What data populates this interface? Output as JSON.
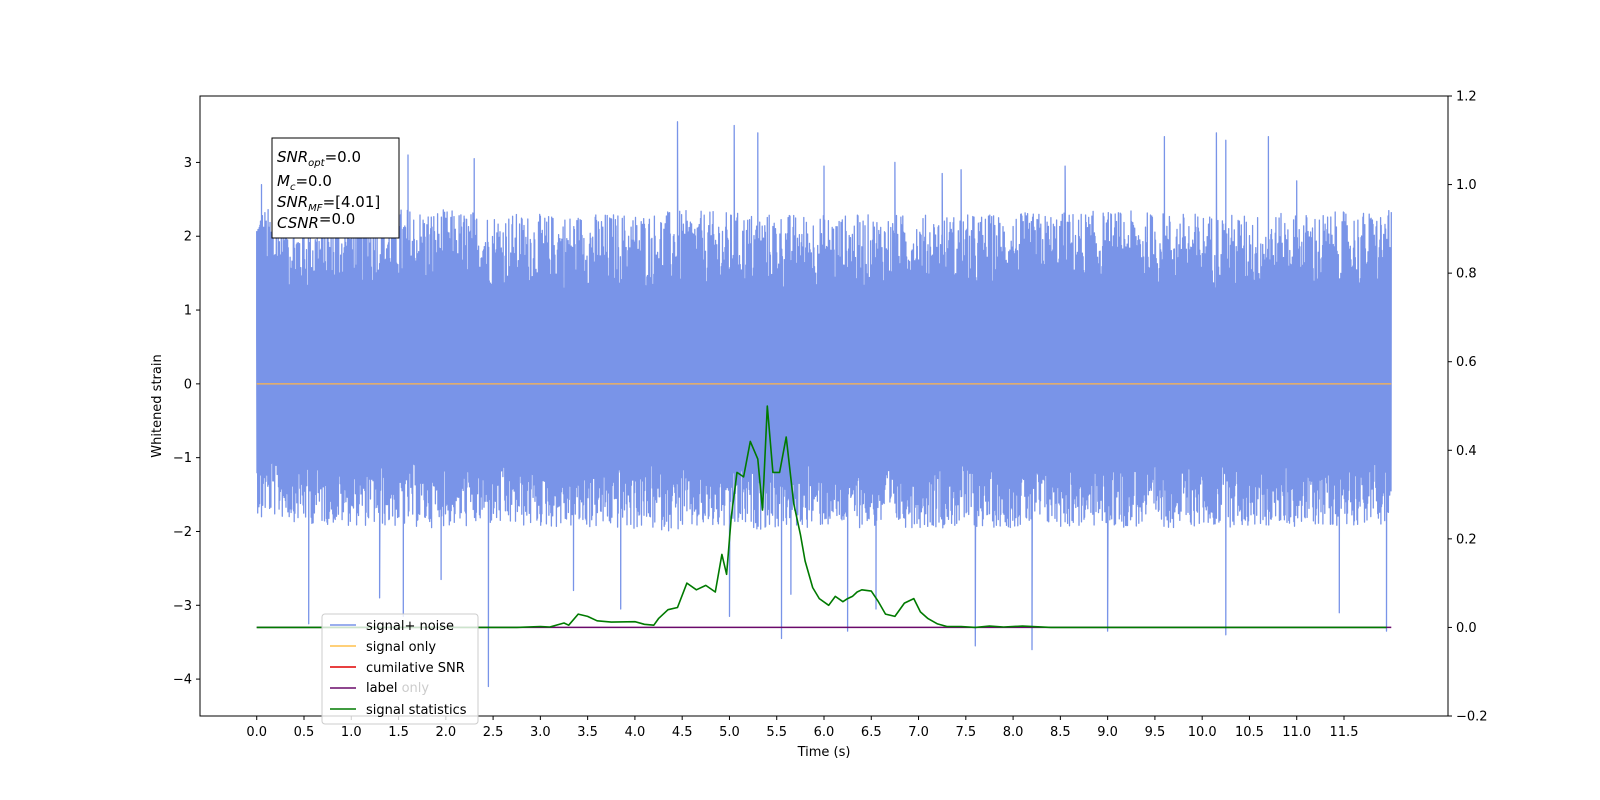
{
  "chart_data": {
    "type": "line",
    "xlabel": "Time (s)",
    "ylabel": "Whitened strain",
    "xlim": [
      -0.6,
      12.6
    ],
    "ylim": [
      -4.5,
      3.9
    ],
    "ylim_right": [
      -0.2,
      1.2
    ],
    "x_ticks": [
      "0.0",
      "0.5",
      "1.0",
      "1.5",
      "2.0",
      "2.5",
      "3.0",
      "3.5",
      "4.0",
      "4.5",
      "5.0",
      "5.5",
      "6.0",
      "6.5",
      "7.0",
      "7.5",
      "8.0",
      "8.5",
      "9.0",
      "9.5",
      "10.0",
      "10.5",
      "11.0",
      "11.5"
    ],
    "y_ticks": [
      "3",
      "2",
      "1",
      "0",
      "−1",
      "−2",
      "−3",
      "−4"
    ],
    "y_ticks_right": [
      "1.2",
      "1.0",
      "0.8",
      "0.6",
      "0.4",
      "0.2",
      "0.0",
      "−0.2"
    ],
    "info_box": [
      {
        "main": "SNR",
        "sub": "opt",
        "value": "=0.0"
      },
      {
        "main": "M",
        "sub": "c",
        "value": "=0.0"
      },
      {
        "main": "SNR",
        "sub": "MF",
        "value": "=[4.01]"
      },
      {
        "main": "CSNR",
        "sub": "",
        "value": "=0.0"
      }
    ],
    "legend": [
      {
        "label": "signal+ noise",
        "color": "#7994e8"
      },
      {
        "label": "signal only",
        "color": "#ffc04d"
      },
      {
        "label": "cumilative SNR",
        "color": "#e00000"
      },
      {
        "label": "label",
        "color": "#6a0a6a"
      },
      {
        "label": "signal statistics",
        "color": "#007a00"
      }
    ],
    "legend_hidden_text": [
      "label only"
    ],
    "series": [
      {
        "name": "signal+ noise",
        "axis": "left",
        "x_range": [
          0.0,
          12.0
        ],
        "envelope_upper": [
          [
            0.0,
            2.45
          ],
          [
            0.5,
            2.2
          ],
          [
            1.5,
            2.4
          ],
          [
            3.0,
            2.3
          ],
          [
            4.5,
            2.35
          ],
          [
            6.0,
            2.3
          ],
          [
            7.5,
            2.3
          ],
          [
            9.0,
            2.35
          ],
          [
            10.5,
            2.3
          ],
          [
            12.0,
            2.35
          ]
        ],
        "envelope_lower": [
          [
            0.0,
            -1.75
          ],
          [
            0.5,
            -1.9
          ],
          [
            1.5,
            -1.95
          ],
          [
            3.0,
            -1.95
          ],
          [
            4.5,
            -2.0
          ],
          [
            6.0,
            -1.95
          ],
          [
            7.5,
            -1.95
          ],
          [
            9.0,
            -1.95
          ],
          [
            10.5,
            -1.95
          ],
          [
            12.0,
            -1.9
          ]
        ],
        "peaks_high": [
          [
            0.0,
            0.65
          ],
          [
            0.05,
            2.7
          ],
          [
            1.6,
            3.1
          ],
          [
            2.3,
            3.05
          ],
          [
            4.45,
            3.55
          ],
          [
            5.05,
            3.5
          ],
          [
            5.3,
            3.4
          ],
          [
            6.0,
            2.95
          ],
          [
            6.75,
            3.0
          ],
          [
            7.25,
            2.85
          ],
          [
            7.45,
            2.9
          ],
          [
            8.55,
            2.95
          ],
          [
            9.6,
            3.35
          ],
          [
            10.15,
            3.4
          ],
          [
            10.25,
            3.3
          ],
          [
            10.7,
            3.35
          ],
          [
            11.0,
            2.75
          ]
        ],
        "peaks_low": [
          [
            0.05,
            -1.8
          ],
          [
            0.55,
            -3.25
          ],
          [
            1.3,
            -2.9
          ],
          [
            1.55,
            -3.15
          ],
          [
            1.95,
            -2.65
          ],
          [
            2.45,
            -4.1
          ],
          [
            3.35,
            -2.8
          ],
          [
            3.85,
            -3.05
          ],
          [
            5.0,
            -3.15
          ],
          [
            5.55,
            -3.45
          ],
          [
            5.65,
            -2.85
          ],
          [
            6.25,
            -3.35
          ],
          [
            6.55,
            -3.05
          ],
          [
            7.6,
            -3.55
          ],
          [
            8.2,
            -3.6
          ],
          [
            9.0,
            -3.35
          ],
          [
            10.25,
            -3.4
          ],
          [
            11.45,
            -3.1
          ],
          [
            11.95,
            -3.35
          ]
        ]
      },
      {
        "name": "signal only",
        "axis": "left",
        "x": [
          0.0,
          12.0
        ],
        "y": [
          0.0,
          0.0
        ]
      },
      {
        "name": "label",
        "axis": "right",
        "x": [
          0.0,
          12.0
        ],
        "y": [
          0.0,
          0.0
        ]
      },
      {
        "name": "signal statistics",
        "axis": "right",
        "x": [
          0.0,
          0.5,
          1.0,
          1.5,
          2.0,
          2.5,
          2.75,
          3.0,
          3.1,
          3.25,
          3.3,
          3.4,
          3.5,
          3.6,
          3.75,
          4.0,
          4.1,
          4.2,
          4.25,
          4.35,
          4.45,
          4.55,
          4.65,
          4.75,
          4.85,
          4.92,
          4.97,
          5.02,
          5.08,
          5.15,
          5.22,
          5.3,
          5.35,
          5.4,
          5.46,
          5.53,
          5.6,
          5.68,
          5.75,
          5.8,
          5.88,
          5.95,
          6.05,
          6.12,
          6.2,
          6.25,
          6.3,
          6.35,
          6.4,
          6.5,
          6.57,
          6.65,
          6.75,
          6.85,
          6.95,
          7.02,
          7.1,
          7.2,
          7.3,
          7.45,
          7.6,
          7.75,
          7.9,
          8.1,
          8.4,
          8.7,
          9.0,
          9.3,
          9.6,
          10.0,
          10.5,
          11.0,
          11.5,
          11.95
        ],
        "y": [
          0.0,
          0.0,
          0.0,
          0.0,
          0.0,
          0.0,
          0.0,
          0.002,
          0.001,
          0.01,
          0.005,
          0.03,
          0.025,
          0.015,
          0.012,
          0.013,
          0.007,
          0.005,
          0.02,
          0.04,
          0.045,
          0.1,
          0.085,
          0.095,
          0.08,
          0.165,
          0.12,
          0.25,
          0.35,
          0.34,
          0.42,
          0.38,
          0.265,
          0.5,
          0.35,
          0.35,
          0.43,
          0.28,
          0.21,
          0.15,
          0.09,
          0.065,
          0.05,
          0.07,
          0.058,
          0.065,
          0.07,
          0.08,
          0.085,
          0.082,
          0.06,
          0.03,
          0.025,
          0.055,
          0.065,
          0.035,
          0.02,
          0.008,
          0.002,
          0.002,
          0.0,
          0.003,
          0.001,
          0.003,
          0.0,
          0.0,
          0.0,
          0.0,
          0.0,
          0.0,
          0.0,
          0.0,
          0.0,
          0.0
        ]
      }
    ]
  }
}
